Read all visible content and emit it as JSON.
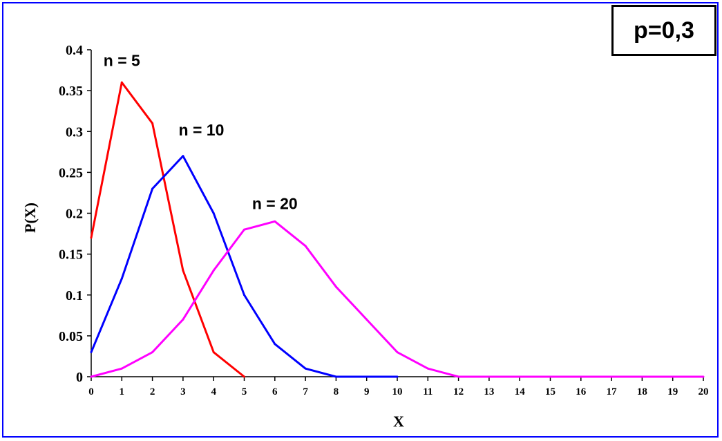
{
  "param_box": {
    "text": "p=0,3"
  },
  "chart_data": {
    "type": "line",
    "xlabel": "X",
    "ylabel": "P(X)",
    "xlim": [
      0,
      20
    ],
    "ylim": [
      0,
      0.4
    ],
    "x_ticks": [
      "0",
      "1",
      "2",
      "3",
      "4",
      "5",
      "6",
      "7",
      "8",
      "9",
      "10",
      "11",
      "12",
      "13",
      "14",
      "15",
      "16",
      "17",
      "18",
      "19",
      "20"
    ],
    "y_ticks": [
      "0",
      "0.05",
      "0.1",
      "0.15",
      "0.2",
      "0.25",
      "0.3",
      "0.35",
      "0.4"
    ],
    "grid": false,
    "series": [
      {
        "name": "n = 5",
        "color": "#ff0000",
        "x": [
          0,
          1,
          2,
          3,
          4,
          5
        ],
        "y": [
          0.17,
          0.36,
          0.31,
          0.13,
          0.03,
          0.0
        ]
      },
      {
        "name": "n = 10",
        "color": "#0000ff",
        "x": [
          0,
          1,
          2,
          3,
          4,
          5,
          6,
          7,
          8,
          9,
          10
        ],
        "y": [
          0.03,
          0.12,
          0.23,
          0.27,
          0.2,
          0.1,
          0.04,
          0.01,
          0.0,
          0.0,
          0.0
        ]
      },
      {
        "name": "n = 20",
        "color": "#ff00ff",
        "x": [
          0,
          1,
          2,
          3,
          4,
          5,
          6,
          7,
          8,
          9,
          10,
          11,
          12,
          13,
          14,
          15,
          16,
          17,
          18,
          19,
          20
        ],
        "y": [
          0.0,
          0.01,
          0.03,
          0.07,
          0.13,
          0.18,
          0.19,
          0.16,
          0.11,
          0.07,
          0.03,
          0.01,
          0.0,
          0.0,
          0.0,
          0.0,
          0.0,
          0.0,
          0.0,
          0.0,
          0.0
        ]
      }
    ]
  }
}
